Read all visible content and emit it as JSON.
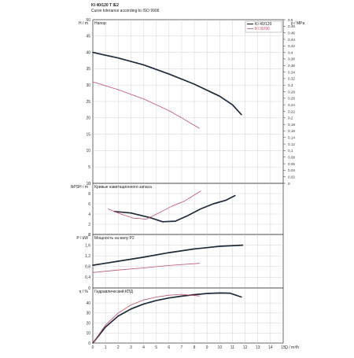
{
  "header": {
    "title": "KI 40/120 T IE2",
    "subtitle": "Curve tolerance according to ISO 9906"
  },
  "colors": {
    "series1": "#1f2a3a",
    "series2": "#c0506a",
    "grid": "#c8c8c8",
    "frame": "#444444"
  },
  "chart_data": [
    {
      "type": "line",
      "title": "Напор",
      "ylabel": "H / m",
      "ylabel2": "p / MPa",
      "ylim": [
        0,
        50
      ],
      "yticks": [
        0,
        5,
        10,
        15,
        20,
        25,
        30,
        35,
        40,
        45,
        50
      ],
      "y2ticks": [
        "0",
        "0,02",
        "0,04",
        "0,06",
        "0,08",
        "0,1",
        "0,12",
        "0,14",
        "0,16",
        "0,18",
        "0,2",
        "0,22",
        "0,24",
        "0,26",
        "0,28",
        "0,3",
        "0,32",
        "0,34",
        "0,36",
        "0,38",
        "0,4",
        "0,42",
        "0,44",
        "0,46",
        "0,48",
        "0,5"
      ],
      "legend": [
        "KI 40/120",
        "KI 30/90"
      ],
      "legend_position": "top-right",
      "series": [
        {
          "name": "KI 40/120",
          "x": [
            0,
            2,
            4,
            6,
            8,
            10,
            11,
            11.7
          ],
          "y": [
            40,
            38.3,
            36.2,
            33.4,
            30.3,
            26.6,
            24,
            21
          ]
        },
        {
          "name": "KI 30/90",
          "x": [
            0,
            2,
            4,
            6,
            7,
            8.4
          ],
          "y": [
            31,
            28.6,
            25.8,
            22.2,
            20,
            16.8
          ]
        }
      ]
    },
    {
      "type": "line",
      "title": "Кривые кавитационного запаса",
      "ylabel": "NPSH / m",
      "ylim": [
        0,
        10
      ],
      "yticks": [
        0,
        2,
        4,
        6,
        8,
        10
      ],
      "series": [
        {
          "name": "KI 40/120",
          "x": [
            1.7,
            3,
            4.5,
            5.5,
            6.5,
            7.5,
            8.5,
            9.5,
            10.5,
            11.2
          ],
          "y": [
            4.5,
            4.2,
            3.3,
            2.5,
            2.6,
            3.7,
            5,
            6,
            6.7,
            7.6
          ]
        },
        {
          "name": "KI 30/90",
          "x": [
            1.2,
            2.2,
            3.2,
            4.2,
            5.2,
            6.2,
            7.2,
            8.5
          ],
          "y": [
            5,
            4,
            3.2,
            3,
            4.2,
            5.5,
            6.5,
            8.5
          ]
        }
      ]
    },
    {
      "type": "line",
      "title": "Мощность на валу P2",
      "ylabel": "P / kW",
      "ylim": [
        0,
        2
      ],
      "yticks": [
        "0",
        "0,4",
        "0,8",
        "1,2",
        "1,6",
        "2"
      ],
      "yticks_values": [
        0,
        0.4,
        0.8,
        1.2,
        1.6,
        2
      ],
      "series": [
        {
          "name": "KI 40/120",
          "x": [
            0,
            2,
            4,
            6,
            8,
            10,
            11.8
          ],
          "y": [
            0.85,
            1.0,
            1.15,
            1.32,
            1.46,
            1.56,
            1.6
          ]
        },
        {
          "name": "KI 30/90",
          "x": [
            0,
            2,
            4,
            6,
            8.4
          ],
          "y": [
            0.58,
            0.67,
            0.75,
            0.84,
            0.92
          ]
        }
      ]
    },
    {
      "type": "line",
      "title": "Гидравлический КПД",
      "ylabel": "η / %",
      "xlabel": "Q / m³/h",
      "ylim": [
        0,
        55
      ],
      "yticks": [
        0,
        10,
        20,
        30,
        40
      ],
      "xlim": [
        0,
        15
      ],
      "xticks": [
        0,
        1,
        2,
        3,
        4,
        5,
        6,
        7,
        8,
        9,
        10,
        11,
        12,
        13,
        14,
        15
      ],
      "series": [
        {
          "name": "KI 40/120",
          "x": [
            0,
            1,
            2,
            3,
            4,
            5,
            6,
            7,
            8,
            9,
            10,
            10.8,
            11.7
          ],
          "y": [
            0,
            16,
            27,
            34,
            39,
            42.5,
            45,
            46.8,
            48.3,
            49.5,
            50,
            49.8,
            46
          ]
        },
        {
          "name": "KI 30/90",
          "x": [
            0,
            1,
            2,
            3,
            4,
            5,
            6,
            7,
            8.4
          ],
          "y": [
            0,
            18,
            30,
            38,
            43,
            46,
            47.8,
            48.6,
            47
          ]
        }
      ]
    }
  ]
}
